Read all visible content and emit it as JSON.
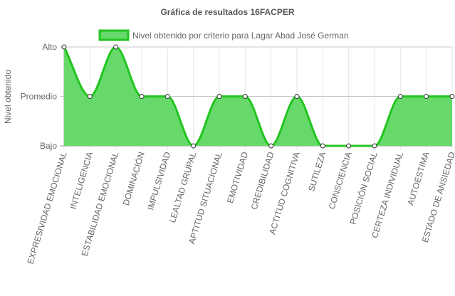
{
  "chart_data": {
    "type": "area",
    "title": "Gráfica de resultados 16FACPER",
    "ylabel": "Nivel obtenido",
    "y_categories": [
      "Bajo",
      "Promedio",
      "Alto"
    ],
    "categories": [
      "EXPRESIVIDAD EMOCIONAL",
      "INTELIGENCIA",
      "ESTABILIDAD EMOCIONAL",
      "DOMINACIÓN",
      "IMPULSIVIDAD",
      "LEALTAD GRUPAL",
      "APTITUD SITUACIONAL",
      "EMOTIVIDAD",
      "CREDIBILIDAD",
      "ACTITUD COGNITIVA",
      "SUTILEZA",
      "CONSCIENCIA",
      "POSICIÓN SOCIAL",
      "CERTEZA INDIVIDUAL",
      "AUTOESTIMA",
      "ESTADO DE ANSIEDAD"
    ],
    "series": [
      {
        "name": "Nivel obtenido por criterio para Lagar Abad José German",
        "values": [
          2,
          1,
          2,
          1,
          1,
          0,
          1,
          1,
          0,
          1,
          0,
          0,
          0,
          1,
          1,
          1
        ]
      }
    ],
    "ylim": [
      0,
      2
    ],
    "legend_position": "top-center",
    "grid": true,
    "colors": {
      "fill": "#66d96a",
      "stroke": "#22c41f",
      "grid": "#e6e6e6",
      "axis": "#999999",
      "text": "#666666",
      "title": "#555555",
      "point_fill": "#ffffff",
      "point_stroke": "#333333"
    }
  }
}
